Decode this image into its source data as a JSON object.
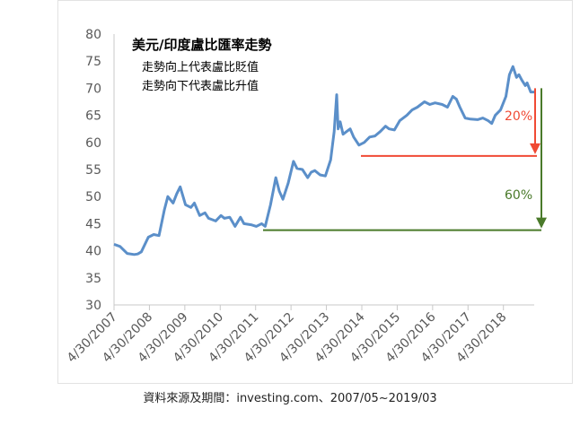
{
  "source_note": "資料來源及期間：investing.com、2007/05~2019/03",
  "chart_data": {
    "type": "line",
    "title": "美元/印度盧比匯率走勢",
    "subtitle_lines": [
      "走勢向上代表盧比貶值",
      "走勢向下代表盧比升值"
    ],
    "xlabel": "",
    "ylabel": "",
    "ylim": [
      30,
      80
    ],
    "y_ticks": [
      "30",
      "35",
      "40",
      "45",
      "50",
      "55",
      "60",
      "65",
      "70",
      "75",
      "80"
    ],
    "x_tick_labels": [
      "4/30/2007",
      "4/30/2008",
      "4/30/2009",
      "4/30/2010",
      "4/30/2011",
      "4/30/2012",
      "4/30/2013",
      "4/30/2014",
      "4/30/2015",
      "4/30/2016",
      "4/30/2017",
      "4/30/2018"
    ],
    "grid": false,
    "line_color": "#5b8fc9",
    "series": [
      {
        "values_x": [
          2007.33,
          2007.5,
          2007.7,
          2007.9,
          2008.0,
          2008.1,
          2008.3,
          2008.45,
          2008.6,
          2008.75,
          2008.85,
          2009.0,
          2009.1,
          2009.2,
          2009.35,
          2009.5,
          2009.6,
          2009.75,
          2009.9,
          2010.0,
          2010.2,
          2010.35,
          2010.45,
          2010.6,
          2010.75,
          2010.9,
          2011.0,
          2011.2,
          2011.35,
          2011.5,
          2011.6,
          2011.75,
          2011.9,
          2012.0,
          2012.1,
          2012.25,
          2012.4,
          2012.5,
          2012.65,
          2012.8,
          2012.9,
          2013.0,
          2013.15,
          2013.3,
          2013.45,
          2013.55,
          2013.62,
          2013.66,
          2013.72,
          2013.8,
          2013.9,
          2014.0,
          2014.1,
          2014.25,
          2014.4,
          2014.55,
          2014.7,
          2014.85,
          2015.0,
          2015.1,
          2015.25,
          2015.4,
          2015.6,
          2015.75,
          2015.9,
          2016.0,
          2016.1,
          2016.25,
          2016.4,
          2016.6,
          2016.75,
          2016.9,
          2017.0,
          2017.1,
          2017.25,
          2017.4,
          2017.6,
          2017.75,
          2017.9,
          2018.0,
          2018.1,
          2018.25,
          2018.4,
          2018.5,
          2018.6,
          2018.7,
          2018.77,
          2018.85,
          2018.95,
          2019.0,
          2019.1,
          2019.2
        ],
        "values_y": [
          41.2,
          40.8,
          39.5,
          39.3,
          39.4,
          39.8,
          42.5,
          43.0,
          42.8,
          47.5,
          50.0,
          48.8,
          50.5,
          51.8,
          48.5,
          48.0,
          48.8,
          46.5,
          47.0,
          46.0,
          45.5,
          46.5,
          46.0,
          46.2,
          44.5,
          46.2,
          45.0,
          44.8,
          44.5,
          45.0,
          44.5,
          48.5,
          53.5,
          51.0,
          49.5,
          52.5,
          56.5,
          55.2,
          55.0,
          53.5,
          54.5,
          54.8,
          54.0,
          53.8,
          56.8,
          62.0,
          68.8,
          62.5,
          63.8,
          61.5,
          62.0,
          62.5,
          61.0,
          59.5,
          60.0,
          61.0,
          61.2,
          62.0,
          63.0,
          62.5,
          62.3,
          64.0,
          65.0,
          66.0,
          66.5,
          67.0,
          67.5,
          67.0,
          67.3,
          67.0,
          66.5,
          68.5,
          68.0,
          66.5,
          64.5,
          64.3,
          64.2,
          64.5,
          64.0,
          63.5,
          65.0,
          66.0,
          68.5,
          72.5,
          74.0,
          72.0,
          72.5,
          71.5,
          70.5,
          71.0,
          69.3,
          69.3
        ]
      }
    ],
    "annotations": [
      {
        "label": "20%",
        "color": "#f04a34",
        "line_y": 57.5,
        "arrow_from": 70.0,
        "arrow_to": 57.5
      },
      {
        "label": "60%",
        "color": "#4a7a2a",
        "line_y": 43.8,
        "arrow_from": 70.0,
        "arrow_to": 43.8
      }
    ]
  }
}
